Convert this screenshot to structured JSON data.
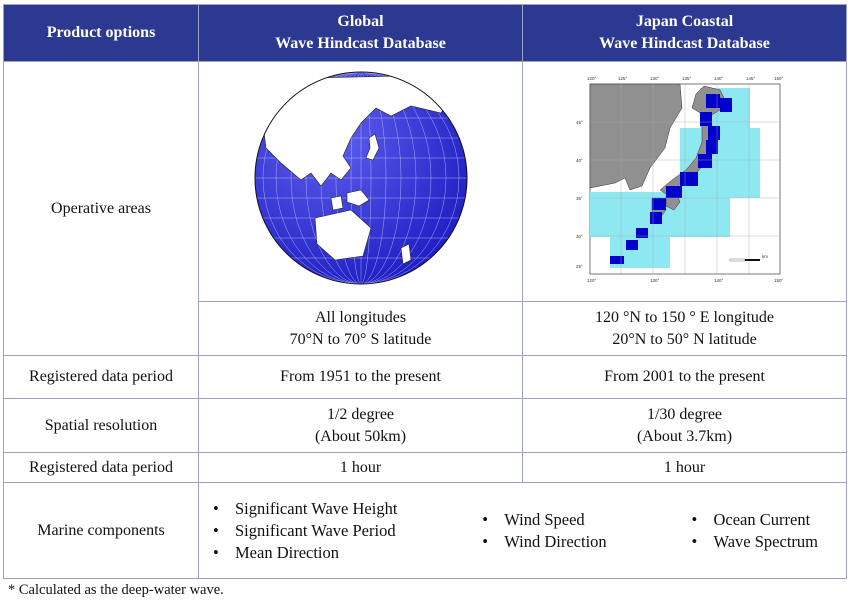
{
  "header": {
    "col1": "Product options",
    "col2_line1": "Global",
    "col2_line2": "Wave Hindcast Database",
    "col3_line1": "Japan Coastal",
    "col3_line2": "Wave Hindcast Database"
  },
  "rows": {
    "operative_label": "Operative areas",
    "global_lon": "All longitudes",
    "global_lat": "70°N to 70° S latitude",
    "japan_lon": "120 °N to 150 ° E longitude",
    "japan_lat": "20°N to 50° N latitude",
    "period_label": "Registered data period",
    "global_period": "From 1951 to the present",
    "japan_period": "From 2001 to the present",
    "resolution_label": "Spatial resolution",
    "global_res_1": "1/2 degree",
    "global_res_2": "(About 50km)",
    "japan_res_1": "1/30 degree",
    "japan_res_2": "(About 3.7km)",
    "interval_label": "Registered data period",
    "global_interval": "1 hour",
    "japan_interval": "1 hour",
    "components_label": "Marine components"
  },
  "components": {
    "group1": [
      "Significant Wave Height",
      "Significant Wave Period",
      "Mean Direction"
    ],
    "group2": [
      "Wind Speed",
      "Wind Direction"
    ],
    "group3": [
      "Ocean Current",
      "Wave Spectrum"
    ]
  },
  "map_labels": {
    "lon_ticks": [
      "120°",
      "125°",
      "130°",
      "135°",
      "140°",
      "145°",
      "150°"
    ],
    "lat_ticks": [
      "45°",
      "40°",
      "35°",
      "30°",
      "25°"
    ],
    "scale_unit": "km"
  },
  "footnote": "* Calculated as the deep-water wave.",
  "colors": {
    "header_bg": "#2b3990",
    "globe_ocean": "#2f2fd8",
    "coastal_fine": "#0000cc",
    "coastal_coarse": "#8ee8f2"
  }
}
